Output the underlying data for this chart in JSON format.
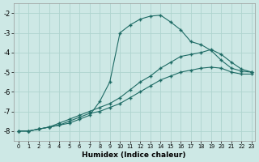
{
  "xlabel": "Humidex (Indice chaleur)",
  "background_color": "#cde8e5",
  "grid_color": "#afd4cf",
  "line_color": "#1e6b65",
  "xlim": [
    -0.5,
    23.3
  ],
  "ylim": [
    -8.5,
    -1.5
  ],
  "xticks": [
    0,
    1,
    2,
    3,
    4,
    5,
    6,
    7,
    8,
    9,
    10,
    11,
    12,
    13,
    14,
    15,
    16,
    17,
    18,
    19,
    20,
    21,
    22,
    23
  ],
  "yticks": [
    -8,
    -7,
    -6,
    -5,
    -4,
    -3,
    -2
  ],
  "curve1_x": [
    0,
    1,
    2,
    3,
    4,
    5,
    6,
    7,
    8,
    9,
    10,
    11,
    12,
    13,
    14,
    15,
    16,
    17,
    18,
    19,
    20,
    21,
    22,
    23
  ],
  "curve1_y": [
    -8.0,
    -8.0,
    -7.9,
    -7.8,
    -7.7,
    -7.6,
    -7.4,
    -7.2,
    -6.5,
    -5.5,
    -3.0,
    -2.6,
    -2.3,
    -2.15,
    -2.1,
    -2.45,
    -2.85,
    -3.45,
    -3.6,
    -3.9,
    -4.4,
    -4.8,
    -4.95,
    -5.0
  ],
  "curve2_x": [
    0,
    1,
    2,
    3,
    4,
    5,
    6,
    7,
    8,
    9,
    10,
    11,
    12,
    13,
    14,
    15,
    16,
    17,
    18,
    19,
    20,
    21,
    22,
    23
  ],
  "curve2_y": [
    -8.0,
    -8.0,
    -7.9,
    -7.8,
    -7.6,
    -7.4,
    -7.2,
    -7.0,
    -6.8,
    -6.6,
    -6.3,
    -5.9,
    -5.5,
    -5.2,
    -4.8,
    -4.5,
    -4.2,
    -4.1,
    -4.0,
    -3.85,
    -4.1,
    -4.5,
    -4.85,
    -5.0
  ],
  "curve3_x": [
    0,
    1,
    2,
    3,
    4,
    5,
    6,
    7,
    8,
    9,
    10,
    11,
    12,
    13,
    14,
    15,
    16,
    17,
    18,
    19,
    20,
    21,
    22,
    23
  ],
  "curve3_y": [
    -8.0,
    -8.0,
    -7.9,
    -7.8,
    -7.7,
    -7.5,
    -7.3,
    -7.1,
    -7.0,
    -6.8,
    -6.6,
    -6.3,
    -6.0,
    -5.7,
    -5.4,
    -5.2,
    -5.0,
    -4.9,
    -4.8,
    -4.75,
    -4.8,
    -5.0,
    -5.1,
    -5.1
  ]
}
